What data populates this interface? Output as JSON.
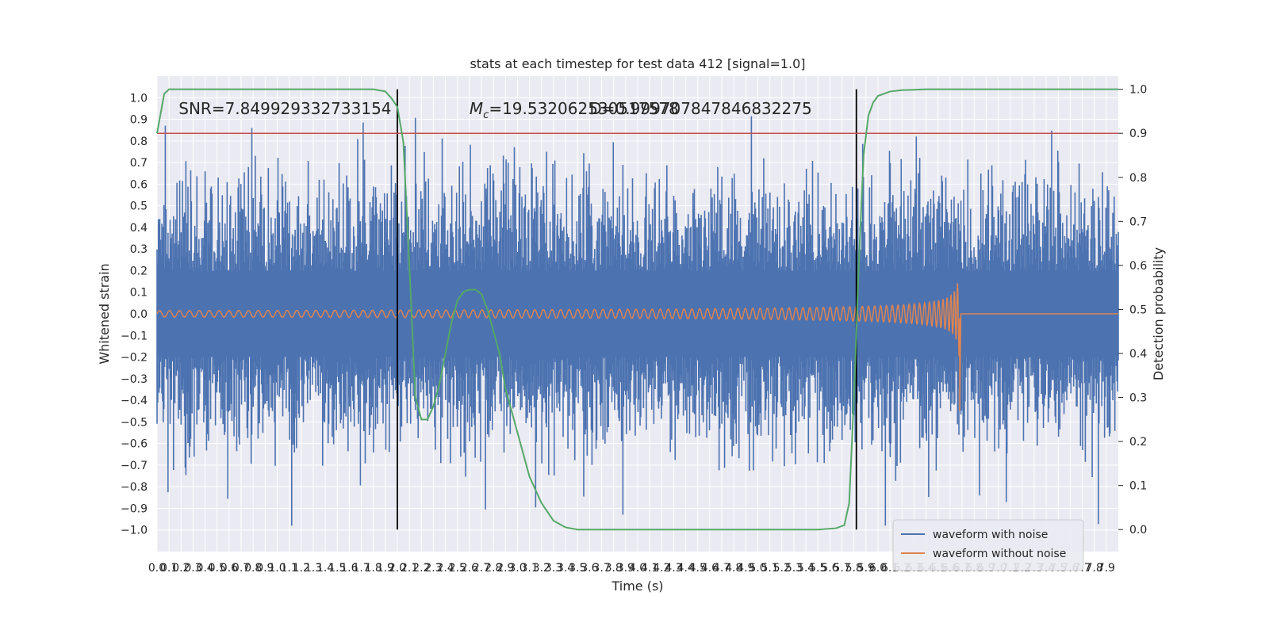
{
  "chart_data": {
    "type": "line",
    "title": "stats at each timestep for test data 412 [signal=1.0]",
    "xlabel": "Time (s)",
    "ylabel": "Whitened strain",
    "y2label": "Detection probability",
    "xlim": [
      0.0,
      8.0
    ],
    "ylim": [
      -1.1,
      1.1
    ],
    "y2lim": [
      -0.05,
      1.03
    ],
    "x_ticks": [
      0.0,
      0.1,
      0.2,
      0.3,
      0.4,
      0.5,
      0.6,
      0.7,
      0.8,
      0.9,
      1.0,
      1.1,
      1.2,
      1.3,
      1.4,
      1.5,
      1.6,
      1.7,
      1.8,
      1.9,
      2.0,
      2.1,
      2.2,
      2.3,
      2.4,
      2.5,
      2.6,
      2.7,
      2.8,
      2.9,
      3.0,
      3.1,
      3.2,
      3.3,
      3.4,
      3.5,
      3.6,
      3.7,
      3.8,
      3.9,
      4.0,
      4.1,
      4.2,
      4.3,
      4.4,
      4.5,
      4.6,
      4.7,
      4.8,
      4.9,
      5.0,
      5.1,
      5.2,
      5.3,
      5.4,
      5.5,
      5.6,
      5.7,
      5.8,
      5.9,
      6.0,
      6.1,
      6.2,
      6.3,
      6.4,
      6.5,
      6.6,
      6.7,
      6.8,
      6.9,
      7.0,
      7.1,
      7.2,
      7.3,
      7.4,
      7.5,
      7.6,
      7.7,
      7.8,
      7.9
    ],
    "y_ticks": [
      -1.0,
      -0.9,
      -0.8,
      -0.7,
      -0.6,
      -0.5,
      -0.4,
      -0.3,
      -0.2,
      -0.1,
      0.0,
      0.1,
      0.2,
      0.3,
      0.4,
      0.5,
      0.6,
      0.7,
      0.8,
      0.9,
      1.0
    ],
    "y2_ticks": [
      0.0,
      0.1,
      0.2,
      0.3,
      0.4,
      0.5,
      0.6,
      0.7,
      0.8,
      0.9,
      1.0
    ],
    "grid": true,
    "legend_position": "lower-right",
    "annotations": [
      {
        "text": "SNR=7.849929332733154",
        "x": 0.18,
        "y": 0.95
      },
      {
        "text_prefix": "M",
        "subscript": "c",
        "text": "=19.532062530517578",
        "x": 2.6,
        "y": 0.95
      },
      {
        "text": "D=0.999707847846832275",
        "x": 3.6,
        "y": 0.95
      }
    ],
    "hlines_y2": [
      0.9
    ],
    "vlines_x": [
      2.0,
      5.82
    ],
    "noise_envelope": {
      "x_range": [
        0.0,
        8.0
      ],
      "typical_peak": 0.6,
      "max_peak": 0.93
    },
    "series": [
      {
        "name": "waveform with noise",
        "color": "#4c72b0",
        "kind": "noise"
      },
      {
        "name": "waveform without noise",
        "color": "#dd8452",
        "kind": "chirp",
        "x_start": 0.0,
        "x_merger": 6.68,
        "x_end": 8.0,
        "amp_start": 0.015,
        "amp_peak": 0.42,
        "amp_min_at_merger": -0.45,
        "freq_start": 12,
        "freq_merger": 40
      },
      {
        "name": "",
        "color": "#55a868",
        "kind": "probability",
        "x": [
          0.0,
          0.06,
          0.1,
          0.2,
          0.4,
          0.8,
          1.2,
          1.6,
          1.8,
          1.9,
          1.95,
          2.0,
          2.05,
          2.1,
          2.15,
          2.2,
          2.25,
          2.3,
          2.35,
          2.4,
          2.45,
          2.5,
          2.55,
          2.6,
          2.65,
          2.7,
          2.75,
          2.8,
          2.85,
          2.9,
          3.0,
          3.1,
          3.2,
          3.3,
          3.4,
          3.5,
          3.6,
          4.0,
          5.0,
          5.5,
          5.65,
          5.72,
          5.76,
          5.8,
          5.84,
          5.88,
          5.92,
          5.96,
          6.0,
          6.1,
          6.2,
          6.4,
          7.0,
          8.0
        ],
        "y": [
          0.9,
          0.99,
          1.0,
          1.0,
          1.0,
          1.0,
          1.0,
          1.0,
          1.0,
          0.995,
          0.98,
          0.96,
          0.88,
          0.6,
          0.3,
          0.25,
          0.25,
          0.28,
          0.33,
          0.4,
          0.47,
          0.52,
          0.54,
          0.545,
          0.545,
          0.535,
          0.5,
          0.45,
          0.4,
          0.32,
          0.22,
          0.12,
          0.06,
          0.02,
          0.005,
          0.0,
          0.0,
          0.0,
          0.0,
          0.0,
          0.003,
          0.01,
          0.06,
          0.3,
          0.6,
          0.85,
          0.94,
          0.97,
          0.985,
          0.995,
          0.998,
          1.0,
          1.0,
          1.0
        ]
      }
    ],
    "colors": {
      "background": "#eaeaf2",
      "grid": "#ffffff",
      "threshold_line": "#c44e52",
      "vline": "#000000"
    }
  }
}
